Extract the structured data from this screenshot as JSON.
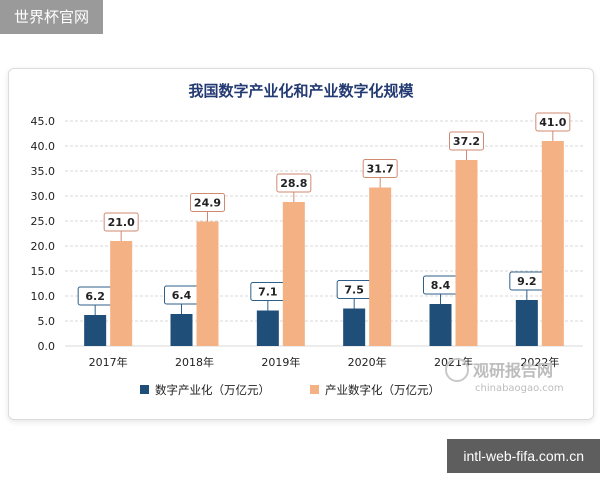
{
  "watermark_top": "世界杯官网",
  "watermark_bottom": "intl-web-fifa.com.cn",
  "brand": {
    "cn": "观研报告网",
    "en": "chinabaogao.com"
  },
  "colors": {
    "series1": "#1f4e79",
    "series2": "#f4b183",
    "label_border_1": "#2e5f8a",
    "label_border_2": "#d08a72",
    "grid": "#d9d9d9"
  },
  "chart_data": {
    "type": "bar",
    "title": "我国数字产业化和产业数字化规模",
    "categories": [
      "2017年",
      "2018年",
      "2019年",
      "2020年",
      "2021年",
      "2022年"
    ],
    "series": [
      {
        "name": "数字产业化（万亿元）",
        "values": [
          6.2,
          6.4,
          7.1,
          7.5,
          8.4,
          9.2
        ]
      },
      {
        "name": "产业数字化（万亿元）",
        "values": [
          21.0,
          24.9,
          28.8,
          31.7,
          37.2,
          41.0
        ]
      }
    ],
    "ylim": [
      0,
      45
    ],
    "yticks": [
      "0.0",
      "5.0",
      "10.0",
      "15.0",
      "20.0",
      "25.0",
      "30.0",
      "35.0",
      "40.0",
      "45.0"
    ],
    "grid": true,
    "legend_position": "bottom"
  }
}
